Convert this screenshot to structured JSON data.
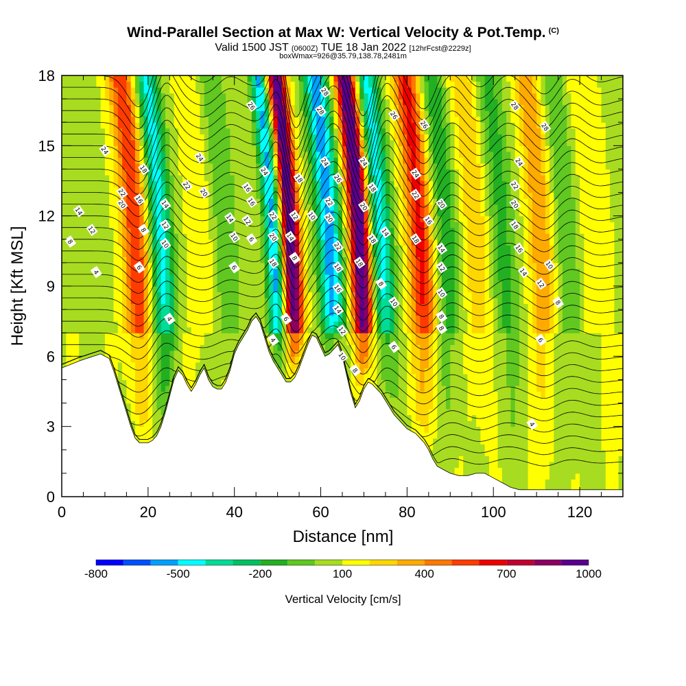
{
  "header": {
    "title": "Wind-Parallel Section at Max W: Vertical Velocity & Pot.Temp.",
    "copyright": "(C)",
    "valid_prefix": "Valid 1500 JST",
    "valid_zulu": "(0600Z)",
    "valid_date": "TUE 18 Jan 2022",
    "forecast": "[12hrFcst@2229z]",
    "box_info": "boxWmax=926@35.79,138.78,2481m"
  },
  "colors": {
    "scale": [
      "#0000ff",
      "#0050ff",
      "#00a0ff",
      "#00ffff",
      "#00dc96",
      "#00c060",
      "#22b022",
      "#60c820",
      "#a8dc20",
      "#ffff00",
      "#ffd700",
      "#ffaa00",
      "#ff7800",
      "#ff3c00",
      "#ee0000",
      "#c00030",
      "#8b0060",
      "#5a008c"
    ],
    "terrain": "#ffffff",
    "contour": "#000000"
  },
  "chart_data": {
    "type": "heatmap",
    "xlabel": "Distance [nm]",
    "ylabel": "Height [Kft MSL]",
    "xlim": [
      0,
      130
    ],
    "ylim": [
      0,
      18
    ],
    "x_ticks": [
      0,
      20,
      40,
      60,
      80,
      100,
      120
    ],
    "y_ticks": [
      0,
      3,
      6,
      9,
      12,
      15,
      18
    ],
    "colorbar": {
      "title": "Vertical Velocity [cm/s]",
      "tick_labels": [
        "-800",
        "-500",
        "-200",
        "100",
        "400",
        "700",
        "1000"
      ],
      "tick_values": [
        -800,
        -500,
        -200,
        100,
        400,
        700,
        1000
      ],
      "range": [
        -800,
        1000
      ]
    },
    "terrain_profile": {
      "x": [
        0,
        4,
        9,
        11,
        12,
        13,
        14,
        15,
        16,
        17,
        18,
        19,
        20,
        21,
        22,
        23,
        24,
        25,
        26,
        27,
        28,
        29,
        30,
        31,
        32,
        33,
        34,
        35,
        36,
        37,
        38,
        39,
        40,
        41,
        42,
        43,
        44,
        45,
        46,
        47,
        48,
        49,
        50,
        51,
        52,
        53,
        54,
        55,
        56,
        57,
        58,
        59,
        60,
        61,
        62,
        63,
        64,
        65,
        66,
        67,
        68,
        69,
        70,
        71,
        72,
        73,
        74,
        75,
        76,
        77,
        78,
        79,
        80,
        81,
        82,
        83,
        84,
        85,
        86,
        87,
        88,
        89,
        90,
        92,
        94,
        96,
        98,
        100,
        102,
        104,
        106,
        108,
        110,
        112,
        114,
        116,
        118,
        120,
        122,
        124,
        126,
        128,
        130
      ],
      "y": [
        5.5,
        5.8,
        6.1,
        5.9,
        5.4,
        4.8,
        4.2,
        3.6,
        3.0,
        2.5,
        2.3,
        2.3,
        2.3,
        2.4,
        2.6,
        3.0,
        3.6,
        4.3,
        5.0,
        5.4,
        5.2,
        4.8,
        4.5,
        4.8,
        5.2,
        5.5,
        5.0,
        4.7,
        4.6,
        4.6,
        4.9,
        5.4,
        6.1,
        6.5,
        6.8,
        7.1,
        7.5,
        7.7,
        7.4,
        6.8,
        6.2,
        5.8,
        5.5,
        5.2,
        4.9,
        4.9,
        5.1,
        5.5,
        6.0,
        6.5,
        6.9,
        6.8,
        6.4,
        6.0,
        6.1,
        6.3,
        6.5,
        6.0,
        5.2,
        4.4,
        3.8,
        4.1,
        4.6,
        4.9,
        4.8,
        4.6,
        4.4,
        4.1,
        3.8,
        3.5,
        3.3,
        3.1,
        2.9,
        2.8,
        2.7,
        2.5,
        2.3,
        2.0,
        1.6,
        1.3,
        1.2,
        1.1,
        1.0,
        0.9,
        0.9,
        1.0,
        1.0,
        0.8,
        0.6,
        0.4,
        0.3,
        0.3,
        0.3,
        0.3,
        0.3,
        0.3,
        0.3,
        0.3,
        0.3,
        0.3,
        0.3,
        0.3,
        0.3
      ]
    },
    "w_bands": [
      {
        "x": 18,
        "w": 520,
        "width": 3.0
      },
      {
        "x": 24,
        "w": -520,
        "width": 2.6
      },
      {
        "x": 33,
        "w": 120,
        "width": 2.8
      },
      {
        "x": 39,
        "w": -180,
        "width": 2.8
      },
      {
        "x": 50,
        "w": -620,
        "width": 2.0
      },
      {
        "x": 54,
        "w": 950,
        "width": 2.2
      },
      {
        "x": 63,
        "w": -650,
        "width": 2.8
      },
      {
        "x": 70,
        "w": 980,
        "width": 2.4
      },
      {
        "x": 75,
        "w": -520,
        "width": 2.6
      },
      {
        "x": 84,
        "w": 560,
        "width": 3.0
      },
      {
        "x": 90,
        "w": -260,
        "width": 3.0
      },
      {
        "x": 97,
        "w": 220,
        "width": 3.2
      },
      {
        "x": 103,
        "w": -220,
        "width": 3.2
      },
      {
        "x": 112,
        "w": 320,
        "width": 3.0
      },
      {
        "x": 118,
        "w": -180,
        "width": 3.2
      },
      {
        "x": 124,
        "w": 120,
        "width": 3.5
      }
    ],
    "theta_labels": [
      {
        "text": "24",
        "x": 10,
        "y": 14.8
      },
      {
        "text": "22",
        "x": 14,
        "y": 13.0
      },
      {
        "text": "20",
        "x": 14,
        "y": 12.5
      },
      {
        "text": "18",
        "x": 19,
        "y": 14.0
      },
      {
        "text": "16",
        "x": 18,
        "y": 12.7
      },
      {
        "text": "14",
        "x": 4,
        "y": 12.2
      },
      {
        "text": "12",
        "x": 7,
        "y": 11.4
      },
      {
        "text": "8",
        "x": 2,
        "y": 10.9
      },
      {
        "text": "4",
        "x": 8,
        "y": 9.6
      },
      {
        "text": "8",
        "x": 19,
        "y": 11.4
      },
      {
        "text": "6",
        "x": 18,
        "y": 9.8
      },
      {
        "text": "14",
        "x": 24,
        "y": 12.5
      },
      {
        "text": "12",
        "x": 24,
        "y": 11.6
      },
      {
        "text": "10",
        "x": 24,
        "y": 10.8
      },
      {
        "text": "4",
        "x": 25,
        "y": 7.6
      },
      {
        "text": "24",
        "x": 32,
        "y": 14.5
      },
      {
        "text": "22",
        "x": 29,
        "y": 13.3
      },
      {
        "text": "20",
        "x": 33,
        "y": 13.0
      },
      {
        "text": "14",
        "x": 39,
        "y": 11.9
      },
      {
        "text": "10",
        "x": 40,
        "y": 11.1
      },
      {
        "text": "6",
        "x": 40,
        "y": 9.8
      },
      {
        "text": "26",
        "x": 44,
        "y": 16.7
      },
      {
        "text": "16",
        "x": 43,
        "y": 13.2
      },
      {
        "text": "16",
        "x": 44,
        "y": 12.6
      },
      {
        "text": "12",
        "x": 43,
        "y": 11.8
      },
      {
        "text": "6",
        "x": 44,
        "y": 11.0
      },
      {
        "text": "24",
        "x": 47,
        "y": 13.9
      },
      {
        "text": "22",
        "x": 49,
        "y": 12.0
      },
      {
        "text": "20",
        "x": 49,
        "y": 11.1
      },
      {
        "text": "18",
        "x": 49,
        "y": 10.0
      },
      {
        "text": "4",
        "x": 49,
        "y": 6.7
      },
      {
        "text": "18",
        "x": 55,
        "y": 13.6
      },
      {
        "text": "12",
        "x": 54,
        "y": 12.0
      },
      {
        "text": "14",
        "x": 53,
        "y": 11.1
      },
      {
        "text": "8",
        "x": 54,
        "y": 10.2
      },
      {
        "text": "6",
        "x": 52,
        "y": 7.6
      },
      {
        "text": "10",
        "x": 58,
        "y": 12.0
      },
      {
        "text": "28",
        "x": 61,
        "y": 17.3
      },
      {
        "text": "28",
        "x": 60,
        "y": 16.5
      },
      {
        "text": "24",
        "x": 61,
        "y": 14.3
      },
      {
        "text": "26",
        "x": 64,
        "y": 13.6
      },
      {
        "text": "22",
        "x": 62,
        "y": 12.6
      },
      {
        "text": "20",
        "x": 62,
        "y": 11.9
      },
      {
        "text": "22",
        "x": 64,
        "y": 10.7
      },
      {
        "text": "18",
        "x": 64,
        "y": 9.8
      },
      {
        "text": "16",
        "x": 64,
        "y": 8.9
      },
      {
        "text": "14",
        "x": 64,
        "y": 8.0
      },
      {
        "text": "12",
        "x": 65,
        "y": 7.1
      },
      {
        "text": "10",
        "x": 65,
        "y": 6.0
      },
      {
        "text": "8",
        "x": 68,
        "y": 5.4
      },
      {
        "text": "24",
        "x": 70,
        "y": 14.3
      },
      {
        "text": "18",
        "x": 72,
        "y": 13.2
      },
      {
        "text": "20",
        "x": 70,
        "y": 12.4
      },
      {
        "text": "18",
        "x": 72,
        "y": 11.0
      },
      {
        "text": "18",
        "x": 69,
        "y": 10.0
      },
      {
        "text": "26",
        "x": 77,
        "y": 16.3
      },
      {
        "text": "14",
        "x": 75,
        "y": 11.3
      },
      {
        "text": "8",
        "x": 74,
        "y": 9.1
      },
      {
        "text": "10",
        "x": 77,
        "y": 8.3
      },
      {
        "text": "6",
        "x": 77,
        "y": 6.4
      },
      {
        "text": "26",
        "x": 84,
        "y": 15.9
      },
      {
        "text": "24",
        "x": 82,
        "y": 13.8
      },
      {
        "text": "22",
        "x": 82,
        "y": 12.9
      },
      {
        "text": "16",
        "x": 85,
        "y": 11.8
      },
      {
        "text": "18",
        "x": 82,
        "y": 11.0
      },
      {
        "text": "20",
        "x": 88,
        "y": 12.5
      },
      {
        "text": "14",
        "x": 88,
        "y": 10.6
      },
      {
        "text": "12",
        "x": 88,
        "y": 9.8
      },
      {
        "text": "10",
        "x": 88,
        "y": 8.7
      },
      {
        "text": "8",
        "x": 88,
        "y": 7.7
      },
      {
        "text": "8",
        "x": 88,
        "y": 7.2
      },
      {
        "text": "28",
        "x": 105,
        "y": 16.7
      },
      {
        "text": "28",
        "x": 112,
        "y": 15.8
      },
      {
        "text": "24",
        "x": 106,
        "y": 14.3
      },
      {
        "text": "22",
        "x": 105,
        "y": 13.3
      },
      {
        "text": "20",
        "x": 105,
        "y": 12.5
      },
      {
        "text": "18",
        "x": 105,
        "y": 11.6
      },
      {
        "text": "16",
        "x": 106,
        "y": 10.6
      },
      {
        "text": "14",
        "x": 107,
        "y": 9.6
      },
      {
        "text": "10",
        "x": 113,
        "y": 9.9
      },
      {
        "text": "12",
        "x": 111,
        "y": 9.1
      },
      {
        "text": "8",
        "x": 115,
        "y": 8.3
      },
      {
        "text": "6",
        "x": 111,
        "y": 6.7
      },
      {
        "text": "4",
        "x": 109,
        "y": 3.1
      }
    ]
  }
}
